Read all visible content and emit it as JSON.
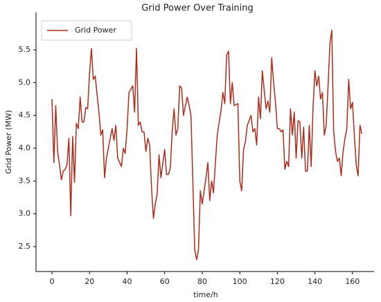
{
  "chart_data": {
    "type": "line",
    "title": "Grid Power Over Training",
    "xlabel": "time/h",
    "ylabel": "Grid Power (MW)",
    "x": [
      0,
      1,
      2,
      3,
      4,
      5,
      6,
      7,
      8,
      9,
      10,
      11,
      12,
      13,
      14,
      15,
      16,
      17,
      18,
      19,
      20,
      21,
      22,
      23,
      25,
      26,
      27,
      28,
      29,
      31,
      32,
      33,
      34,
      35,
      37,
      38,
      39,
      40,
      41,
      43,
      44,
      45,
      46,
      47,
      48,
      49,
      50,
      51,
      52,
      53,
      54,
      55,
      56,
      57,
      58,
      60,
      61,
      62,
      63,
      64,
      65,
      66,
      67,
      68,
      69,
      70,
      72,
      73,
      74,
      75,
      76,
      77,
      78,
      79,
      80,
      82,
      83,
      84,
      85,
      86,
      87,
      88,
      90,
      91,
      92,
      93,
      94,
      95,
      96,
      97,
      99,
      100,
      101,
      102,
      103,
      104,
      106,
      107,
      108,
      109,
      110,
      111,
      112,
      114,
      115,
      116,
      117,
      118,
      119,
      120,
      121,
      122,
      123,
      124,
      125,
      126,
      127,
      128,
      129,
      130,
      131,
      132,
      133,
      134,
      135,
      136,
      137,
      138,
      139,
      140,
      141,
      142,
      143,
      144,
      145,
      146,
      147,
      148,
      149,
      150,
      151,
      152,
      153,
      154,
      155,
      156,
      157,
      158,
      159,
      160,
      161,
      162,
      163,
      164,
      165
    ],
    "series": [
      {
        "name": "Grid Power",
        "color": "#b02a1c",
        "values": [
          4.75,
          3.78,
          4.65,
          3.95,
          3.75,
          3.52,
          3.65,
          3.68,
          3.75,
          4.15,
          2.97,
          4.18,
          3.48,
          4.38,
          4.3,
          4.78,
          4.4,
          4.4,
          4.62,
          4.6,
          5.15,
          5.52,
          5.05,
          5.1,
          4.55,
          4.2,
          4.28,
          3.55,
          3.85,
          4.15,
          4.3,
          4.12,
          4.35,
          3.85,
          3.72,
          4.0,
          3.92,
          4.3,
          4.85,
          4.95,
          4.55,
          5.52,
          4.35,
          4.4,
          4.25,
          4.25,
          3.95,
          4.15,
          4.05,
          3.4,
          2.93,
          3.15,
          3.3,
          3.9,
          3.55,
          3.98,
          3.6,
          3.6,
          3.7,
          4.25,
          4.6,
          4.2,
          4.3,
          4.95,
          4.92,
          4.5,
          4.78,
          4.65,
          4.5,
          3.5,
          2.45,
          2.3,
          2.45,
          3.35,
          3.15,
          3.55,
          3.78,
          3.2,
          3.5,
          3.32,
          3.78,
          4.2,
          4.58,
          4.85,
          4.68,
          5.42,
          5.48,
          4.68,
          5.0,
          4.65,
          4.68,
          3.5,
          3.35,
          3.98,
          4.1,
          4.35,
          4.5,
          4.25,
          4.3,
          4.05,
          4.78,
          4.45,
          5.18,
          4.6,
          4.72,
          4.55,
          5.38,
          5.0,
          4.7,
          4.3,
          4.3,
          4.25,
          4.28,
          3.68,
          3.8,
          3.72,
          4.6,
          4.2,
          4.55,
          3.85,
          4.42,
          4.4,
          3.85,
          4.32,
          3.65,
          3.65,
          4.35,
          3.72,
          4.62,
          5.18,
          4.95,
          5.1,
          4.75,
          4.85,
          4.2,
          4.35,
          4.95,
          5.6,
          5.8,
          4.25,
          3.95,
          3.8,
          3.85,
          3.58,
          3.95,
          4.15,
          4.3,
          5.05,
          4.6,
          4.7,
          4.2,
          3.75,
          3.58,
          4.35,
          4.22
        ]
      }
    ],
    "xlim": [
      -8.5,
      171.5
    ],
    "ylim": [
      2.12,
      6.07
    ],
    "xticks": [
      0,
      20,
      40,
      60,
      80,
      100,
      120,
      140,
      160
    ],
    "yticks": [
      2.5,
      {
        "value": 3,
        "label": "3.0"
      },
      3.5,
      {
        "value": 4,
        "label": "4.0"
      },
      4.5,
      {
        "value": 5,
        "label": "5.0"
      },
      5.5
    ],
    "grid": false,
    "legend": "upper left"
  }
}
